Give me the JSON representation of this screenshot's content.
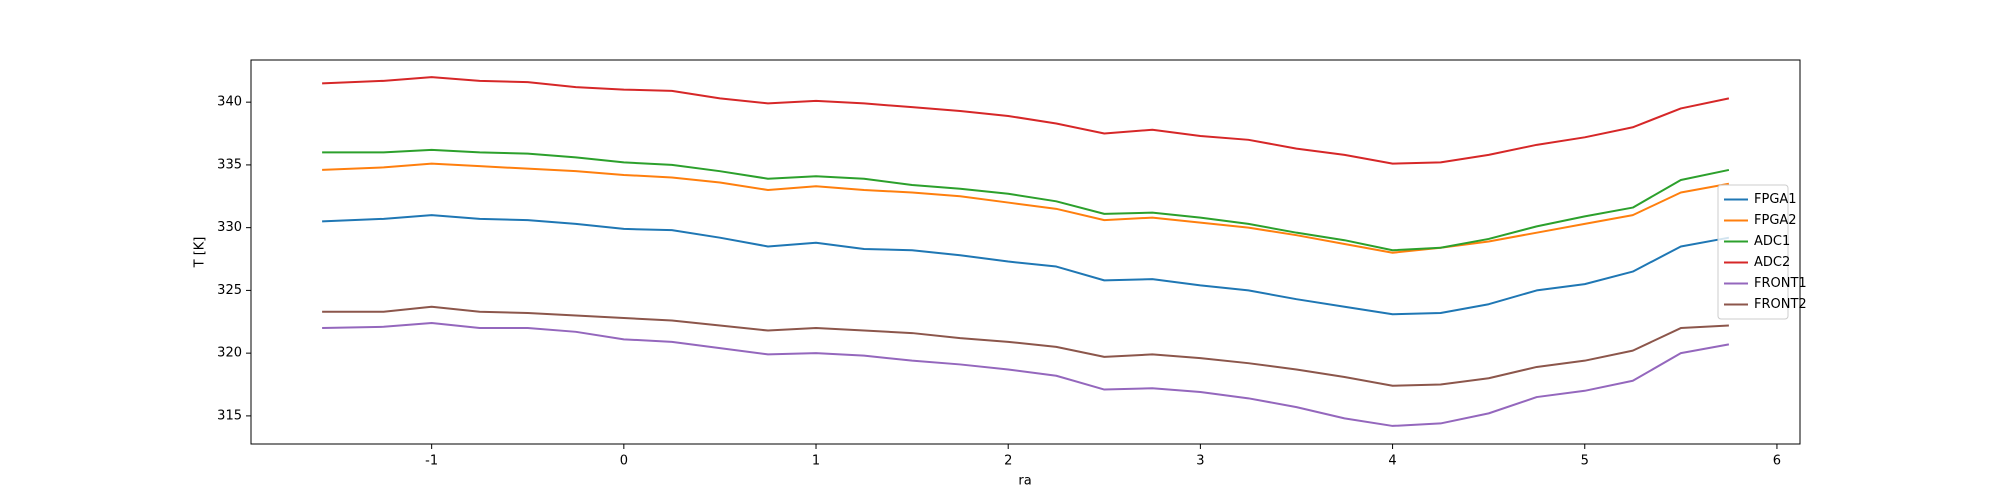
{
  "chart_data": {
    "type": "line",
    "xlabel": "ra",
    "ylabel": "T [K]",
    "x": [
      -1.57,
      -1.25,
      -1.0,
      -0.75,
      -0.5,
      -0.25,
      0,
      0.25,
      0.5,
      0.75,
      1.0,
      1.25,
      1.5,
      1.75,
      2.0,
      2.25,
      2.5,
      2.75,
      3.0,
      3.25,
      3.5,
      3.75,
      4.0,
      4.25,
      4.5,
      4.75,
      5.0,
      5.25,
      5.5,
      5.75
    ],
    "series": [
      {
        "name": "FPGA1",
        "color": "#1f77b4",
        "values": [
          330.5,
          330.7,
          331.0,
          330.7,
          330.6,
          330.3,
          329.9,
          329.8,
          329.2,
          328.5,
          328.8,
          328.3,
          328.2,
          327.8,
          327.3,
          326.9,
          325.8,
          325.9,
          325.4,
          325.0,
          324.3,
          323.7,
          323.1,
          323.2,
          323.9,
          325.0,
          325.5,
          326.5,
          328.5,
          329.2
        ]
      },
      {
        "name": "FPGA2",
        "color": "#ff7f0e",
        "values": [
          334.6,
          334.8,
          335.1,
          334.9,
          334.7,
          334.5,
          334.2,
          334.0,
          333.6,
          333.0,
          333.3,
          333.0,
          332.8,
          332.5,
          332.0,
          331.5,
          330.6,
          330.8,
          330.4,
          330.0,
          329.4,
          328.7,
          328.0,
          328.4,
          328.9,
          329.6,
          330.3,
          331.0,
          332.8,
          333.5
        ]
      },
      {
        "name": "ADC1",
        "color": "#2ca02c",
        "values": [
          336.0,
          336.0,
          336.2,
          336.0,
          335.9,
          335.6,
          335.2,
          335.0,
          334.5,
          333.9,
          334.1,
          333.9,
          333.4,
          333.1,
          332.7,
          332.1,
          331.1,
          331.2,
          330.8,
          330.3,
          329.6,
          329.0,
          328.2,
          328.4,
          329.1,
          330.1,
          330.9,
          331.6,
          333.8,
          334.6
        ]
      },
      {
        "name": "ADC2",
        "color": "#d62728",
        "values": [
          341.5,
          341.7,
          342.0,
          341.7,
          341.6,
          341.2,
          341.0,
          340.9,
          340.3,
          339.9,
          340.1,
          339.9,
          339.6,
          339.3,
          338.9,
          338.3,
          337.5,
          337.8,
          337.3,
          337.0,
          336.3,
          335.8,
          335.1,
          335.2,
          335.8,
          336.6,
          337.2,
          338.0,
          339.5,
          340.3
        ]
      },
      {
        "name": "FRONT1",
        "color": "#9467bd",
        "values": [
          322.0,
          322.1,
          322.4,
          322.0,
          322.0,
          321.7,
          321.1,
          320.9,
          320.4,
          319.9,
          320.0,
          319.8,
          319.4,
          319.1,
          318.7,
          318.2,
          317.1,
          317.2,
          316.9,
          316.4,
          315.7,
          314.8,
          314.2,
          314.4,
          315.2,
          316.5,
          317.0,
          317.8,
          320.0,
          320.7
        ]
      },
      {
        "name": "FRONT2",
        "color": "#8c564b",
        "values": [
          323.3,
          323.3,
          323.7,
          323.3,
          323.2,
          323.0,
          322.8,
          322.6,
          322.2,
          321.8,
          322.0,
          321.8,
          321.6,
          321.2,
          320.9,
          320.5,
          319.7,
          319.9,
          319.6,
          319.2,
          318.7,
          318.1,
          317.4,
          317.5,
          318.0,
          318.9,
          319.4,
          320.2,
          322.0,
          322.2
        ]
      }
    ],
    "xlim": [
      -1.94,
      6.12
    ],
    "xticks": [
      -1,
      0,
      1,
      2,
      3,
      4,
      5,
      6
    ],
    "ylim": [
      312.76,
      343.36
    ],
    "yticks": [
      315,
      320,
      325,
      330,
      335,
      340
    ],
    "legend": "center right"
  }
}
